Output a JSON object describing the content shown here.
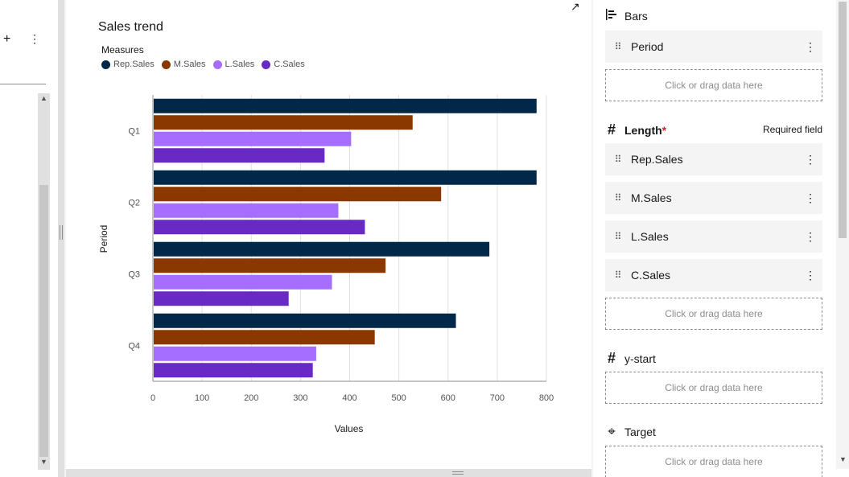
{
  "left_panel": {
    "add_icon": "+",
    "more_icon": "⋮",
    "scroll_up": "▲",
    "scroll_down": "▼"
  },
  "chart_panel": {
    "expand_icon": "↗",
    "title": "Sales trend",
    "legend_title": "Measures"
  },
  "chart_data": {
    "type": "bar",
    "orientation": "horizontal",
    "title": "Sales trend",
    "xlabel": "Values",
    "ylabel": "Period",
    "categories": [
      "Q1",
      "Q2",
      "Q3",
      "Q4"
    ],
    "xlim": [
      0,
      800
    ],
    "xticks": [
      "0",
      "100",
      "200",
      "300",
      "400",
      "500",
      "600",
      "700",
      "800"
    ],
    "grid": true,
    "legend_position": "top-left",
    "series": [
      {
        "name": "Rep.Sales",
        "color": "#012749",
        "values": [
          780,
          780,
          684,
          616
        ]
      },
      {
        "name": "M.Sales",
        "color": "#8a3800",
        "values": [
          528,
          586,
          473,
          451
        ]
      },
      {
        "name": "L.Sales",
        "color": "#a56eff",
        "values": [
          403,
          377,
          364,
          332
        ]
      },
      {
        "name": "C.Sales",
        "color": "#6929c4",
        "values": [
          349,
          431,
          276,
          325
        ]
      }
    ]
  },
  "right_panel": {
    "bars": {
      "icon": "bars-icon",
      "label": "Bars",
      "fields": [
        "Period"
      ],
      "dropzone": "Click or drag data here"
    },
    "length": {
      "icon": "#",
      "label": "Length",
      "required_mark": "*",
      "required_text": "Required field",
      "fields": [
        "Rep.Sales",
        "M.Sales",
        "L.Sales",
        "C.Sales"
      ],
      "dropzone": "Click or drag data here"
    },
    "y_start": {
      "icon": "#",
      "label": "y-start",
      "dropzone": "Click or drag data here"
    },
    "target": {
      "icon": "⌖",
      "label": "Target",
      "dropzone": "Click or drag data here"
    },
    "drag_icon": "⠿",
    "more_icon": "⋮"
  }
}
